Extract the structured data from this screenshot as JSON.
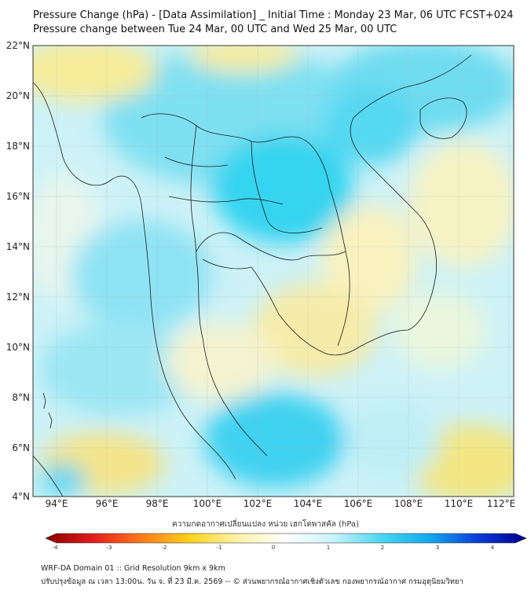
{
  "header": {
    "title_line1": "Pressure Change (hPa) - [Data Assimilation] _ Initial Time : Monday 23 Mar, 06 UTC FCST+024",
    "title_line2": "Pressure change between Tue 24 Mar, 00 UTC and Wed 25 Mar, 00 UTC"
  },
  "map": {
    "lat_ticks": [
      "22°N",
      "20°N",
      "18°N",
      "16°N",
      "14°N",
      "12°N",
      "10°N",
      "8°N",
      "6°N",
      "4°N"
    ],
    "lon_ticks": [
      "94°E",
      "96°E",
      "98°E",
      "100°E",
      "102°E",
      "104°E",
      "106°E",
      "108°E",
      "110°E",
      "112°E"
    ],
    "colors": {
      "increase": "#1ec8ee",
      "decrease": "#f5e070",
      "neutral": "#f4fbfb",
      "border": "#1a1a1a"
    }
  },
  "colorbar": {
    "label": "ความกดอากาศเปลี่ยนแปลง หน่วย เฮกโตพาสคัล (hPa)",
    "ticks": [
      "-4",
      "-3",
      "-2",
      "-1",
      "0",
      "1",
      "2",
      "3",
      "4"
    ],
    "colors": {
      "low": "#8b0000",
      "mid": "#ffffff",
      "high": "#00008b"
    }
  },
  "footer": {
    "line1": "WRF-DA Domain 01 :: Grid Resolution 9km x 9km",
    "line2": "ปรับปรุงข้อมูล ณ เวลา 13:00น. วัน จ. ที่ 23 มี.ค. 2569 -- © ส่วนพยากรณ์อากาศเชิงตัวเลข กองพยากรณ์อากาศ กรมอุตุนิยมวิทยา"
  }
}
